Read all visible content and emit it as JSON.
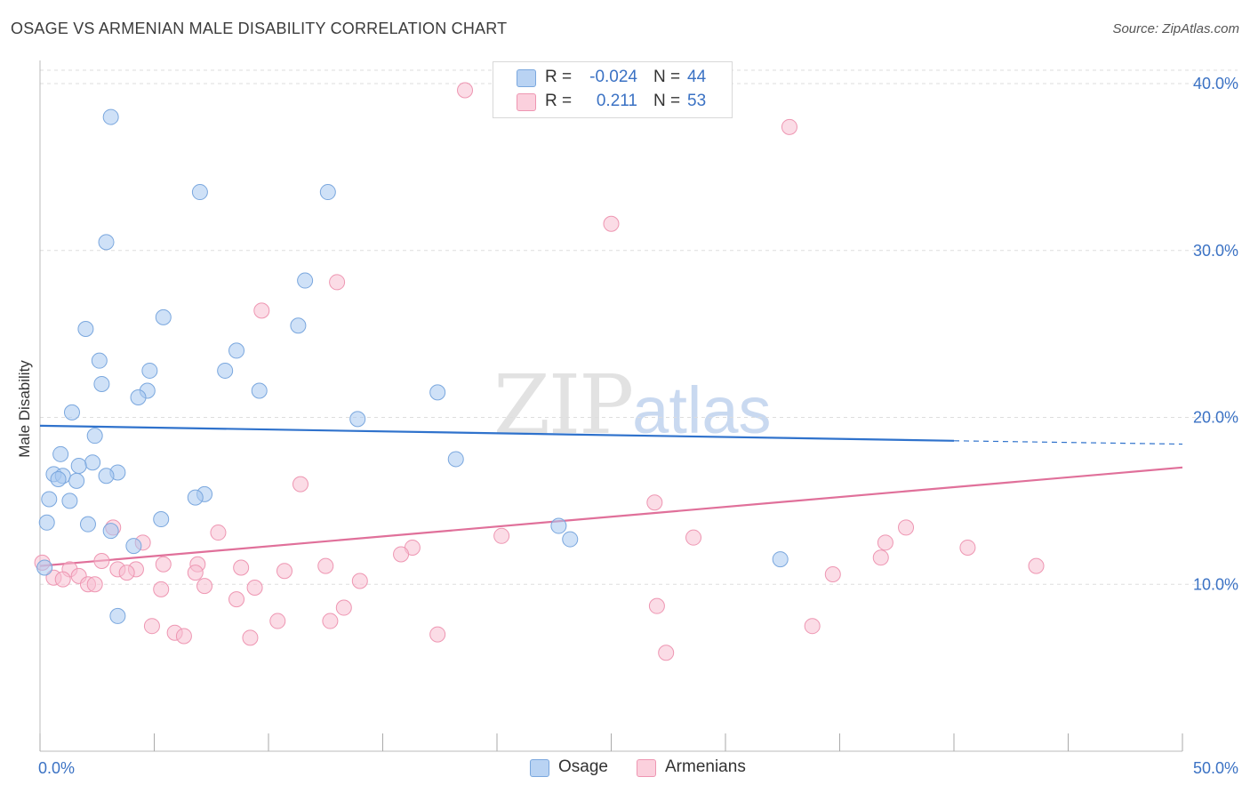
{
  "title": "OSAGE VS ARMENIAN MALE DISABILITY CORRELATION CHART",
  "source": "Source: ZipAtlas.com",
  "watermark": {
    "zip": "ZIP",
    "atlas": "atlas"
  },
  "legend": {
    "rows": [
      {
        "name": "Osage",
        "r_label": "R =",
        "r_value": "-0.024",
        "n_label": "N =",
        "n_value": "44",
        "color": "#a8c8f0"
      },
      {
        "name": "Armenians",
        "r_label": "R =",
        "r_value": "0.211",
        "n_label": "N =",
        "n_value": "53",
        "color": "#f5b8cc"
      }
    ]
  },
  "bottom_legend": {
    "osage": "Osage",
    "armenians": "Armenians"
  },
  "colors": {
    "osage_fill": "#a8c8f0",
    "osage_stroke": "#7aa7de",
    "osage_line": "#2f72cc",
    "armenian_fill": "#f8c0d2",
    "armenian_stroke": "#ee96b2",
    "armenian_line": "#e0709a",
    "tick_text": "#3b72c4",
    "grid": "#dddddd"
  },
  "chart_data": {
    "type": "scatter",
    "title": "OSAGE VS ARMENIAN MALE DISABILITY CORRELATION CHART",
    "xlabel": "",
    "ylabel": "Male Disability",
    "xlim": [
      0,
      50
    ],
    "ylim": [
      0,
      40.8
    ],
    "x_tick_labels": [
      "0.0%",
      "50.0%"
    ],
    "y_ticks": [
      10,
      20,
      30,
      40
    ],
    "y_tick_labels": [
      "10.0%",
      "20.0%",
      "30.0%",
      "40.0%"
    ],
    "grid": true,
    "legend_position": "top-center",
    "series": [
      {
        "name": "Osage",
        "trend": {
          "x0": 0,
          "y0": 19.5,
          "x1": 40,
          "y1": 18.6,
          "dash_to": 50,
          "dash_y": 18.4
        },
        "points": [
          [
            3.1,
            38.0
          ],
          [
            7.0,
            33.5
          ],
          [
            12.6,
            33.5
          ],
          [
            2.9,
            30.5
          ],
          [
            11.6,
            28.2
          ],
          [
            5.4,
            26.0
          ],
          [
            11.3,
            25.5
          ],
          [
            2.0,
            25.3
          ],
          [
            8.6,
            24.0
          ],
          [
            2.6,
            23.4
          ],
          [
            4.8,
            22.8
          ],
          [
            8.1,
            22.8
          ],
          [
            2.7,
            22.0
          ],
          [
            4.7,
            21.6
          ],
          [
            9.6,
            21.6
          ],
          [
            17.4,
            21.5
          ],
          [
            4.3,
            21.2
          ],
          [
            1.4,
            20.3
          ],
          [
            13.9,
            19.9
          ],
          [
            2.4,
            18.9
          ],
          [
            0.9,
            17.8
          ],
          [
            18.2,
            17.5
          ],
          [
            2.3,
            17.3
          ],
          [
            1.7,
            17.1
          ],
          [
            0.6,
            16.6
          ],
          [
            1.0,
            16.5
          ],
          [
            3.4,
            16.7
          ],
          [
            2.9,
            16.5
          ],
          [
            0.8,
            16.3
          ],
          [
            1.6,
            16.2
          ],
          [
            7.2,
            15.4
          ],
          [
            6.8,
            15.2
          ],
          [
            0.4,
            15.1
          ],
          [
            1.3,
            15.0
          ],
          [
            5.3,
            13.9
          ],
          [
            0.3,
            13.7
          ],
          [
            2.1,
            13.6
          ],
          [
            22.7,
            13.5
          ],
          [
            3.1,
            13.2
          ],
          [
            23.2,
            12.7
          ],
          [
            4.1,
            12.3
          ],
          [
            32.4,
            11.5
          ],
          [
            0.2,
            11.0
          ],
          [
            3.4,
            8.1
          ]
        ]
      },
      {
        "name": "Armenians",
        "trend": {
          "x0": 0,
          "y0": 11.1,
          "x1": 50,
          "y1": 17.0
        },
        "points": [
          [
            18.6,
            39.6
          ],
          [
            32.8,
            37.4
          ],
          [
            25.0,
            31.6
          ],
          [
            13.0,
            28.1
          ],
          [
            9.7,
            26.4
          ],
          [
            11.4,
            16.0
          ],
          [
            26.9,
            14.9
          ],
          [
            37.9,
            13.4
          ],
          [
            3.2,
            13.4
          ],
          [
            7.8,
            13.1
          ],
          [
            28.6,
            12.8
          ],
          [
            20.2,
            12.9
          ],
          [
            4.5,
            12.5
          ],
          [
            37.0,
            12.5
          ],
          [
            16.3,
            12.2
          ],
          [
            40.6,
            12.2
          ],
          [
            15.8,
            11.8
          ],
          [
            0.1,
            11.3
          ],
          [
            36.8,
            11.6
          ],
          [
            2.7,
            11.4
          ],
          [
            5.4,
            11.2
          ],
          [
            6.9,
            11.2
          ],
          [
            12.5,
            11.1
          ],
          [
            43.6,
            11.1
          ],
          [
            8.8,
            11.0
          ],
          [
            1.3,
            10.9
          ],
          [
            3.4,
            10.9
          ],
          [
            4.2,
            10.9
          ],
          [
            10.7,
            10.8
          ],
          [
            3.8,
            10.7
          ],
          [
            6.8,
            10.7
          ],
          [
            34.7,
            10.6
          ],
          [
            1.7,
            10.5
          ],
          [
            0.6,
            10.4
          ],
          [
            1.0,
            10.3
          ],
          [
            14.0,
            10.2
          ],
          [
            2.1,
            10.0
          ],
          [
            2.4,
            10.0
          ],
          [
            7.2,
            9.9
          ],
          [
            9.4,
            9.8
          ],
          [
            5.3,
            9.7
          ],
          [
            8.6,
            9.1
          ],
          [
            27.0,
            8.7
          ],
          [
            13.3,
            8.6
          ],
          [
            10.4,
            7.8
          ],
          [
            12.7,
            7.8
          ],
          [
            4.9,
            7.5
          ],
          [
            33.8,
            7.5
          ],
          [
            5.9,
            7.1
          ],
          [
            17.4,
            7.0
          ],
          [
            6.3,
            6.9
          ],
          [
            9.2,
            6.8
          ],
          [
            27.4,
            5.9
          ]
        ]
      }
    ]
  }
}
